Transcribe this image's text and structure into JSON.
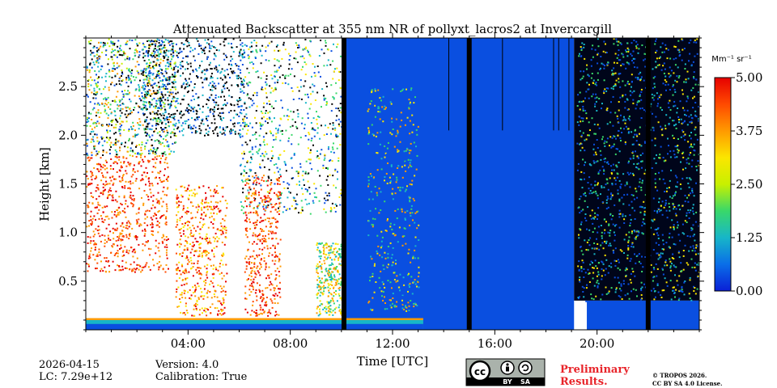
{
  "chart_data": {
    "type": "heatmap",
    "title": "Attenuated Backscatter at 355 nm NR of pollyxt_lacros2 at Invercargill",
    "xlabel": "Time [UTC]",
    "ylabel": "Height [km]",
    "xlim_hours": [
      0,
      24
    ],
    "ylim_km": [
      0,
      3.0
    ],
    "x_ticks": [
      {
        "value": 4,
        "label": "04:00"
      },
      {
        "value": 8,
        "label": "08:00"
      },
      {
        "value": 12,
        "label": "12:00"
      },
      {
        "value": 16,
        "label": "16:00"
      },
      {
        "value": 20,
        "label": "20:00"
      }
    ],
    "y_ticks": [
      {
        "value": 0.5,
        "label": "0.5"
      },
      {
        "value": 1.0,
        "label": "1.0"
      },
      {
        "value": 1.5,
        "label": "1.5"
      },
      {
        "value": 2.0,
        "label": "2.0"
      },
      {
        "value": 2.5,
        "label": "2.5"
      }
    ],
    "colorbar": {
      "unit_label": "Mm⁻¹ sr⁻¹",
      "range": [
        0.0,
        5.0
      ],
      "ticks": [
        {
          "value": 0.0,
          "label": "0.00"
        },
        {
          "value": 1.25,
          "label": "1.25"
        },
        {
          "value": 2.5,
          "label": "2.50"
        },
        {
          "value": 3.75,
          "label": "3.75"
        },
        {
          "value": 5.0,
          "label": "5.00"
        }
      ],
      "stops": [
        "#0a1fd6",
        "#0a6ee8",
        "#17b6c8",
        "#39d86a",
        "#c8f000",
        "#fbe600",
        "#ff9a00",
        "#ff4a00",
        "#e60000"
      ]
    },
    "regions": [
      {
        "name": "cloud-cover-morning",
        "t": [
          0.0,
          10.0
        ],
        "description_level": "saturated"
      },
      {
        "name": "clear-afternoon",
        "t": [
          13.2,
          19.1
        ],
        "description_level": "low"
      },
      {
        "name": "dark-evening",
        "t": [
          19.1,
          24.0
        ],
        "description_level": "noise"
      }
    ],
    "data_gaps_hours": [
      10.1,
      15.0,
      22.0
    ]
  },
  "info": {
    "date": "2026-04-15",
    "lc": "LC: 7.29e+12",
    "version": "Version: 4.0",
    "calibration": "Calibration: True"
  },
  "license": {
    "cc_text": "cc",
    "by_text": "BY",
    "sa_text": "SA",
    "preliminary_line1": "Preliminary",
    "preliminary_line2": "Results.",
    "copyright_line1": "© TROPOS 2026.",
    "copyright_line2": "CC BY SA 4.0 License."
  },
  "colors": {
    "blue_bg": "#0a4fe0",
    "dark_blue": "#0b2ad0",
    "black": "#000000",
    "white": "#ffffff",
    "accent_red": "#e8242a"
  }
}
